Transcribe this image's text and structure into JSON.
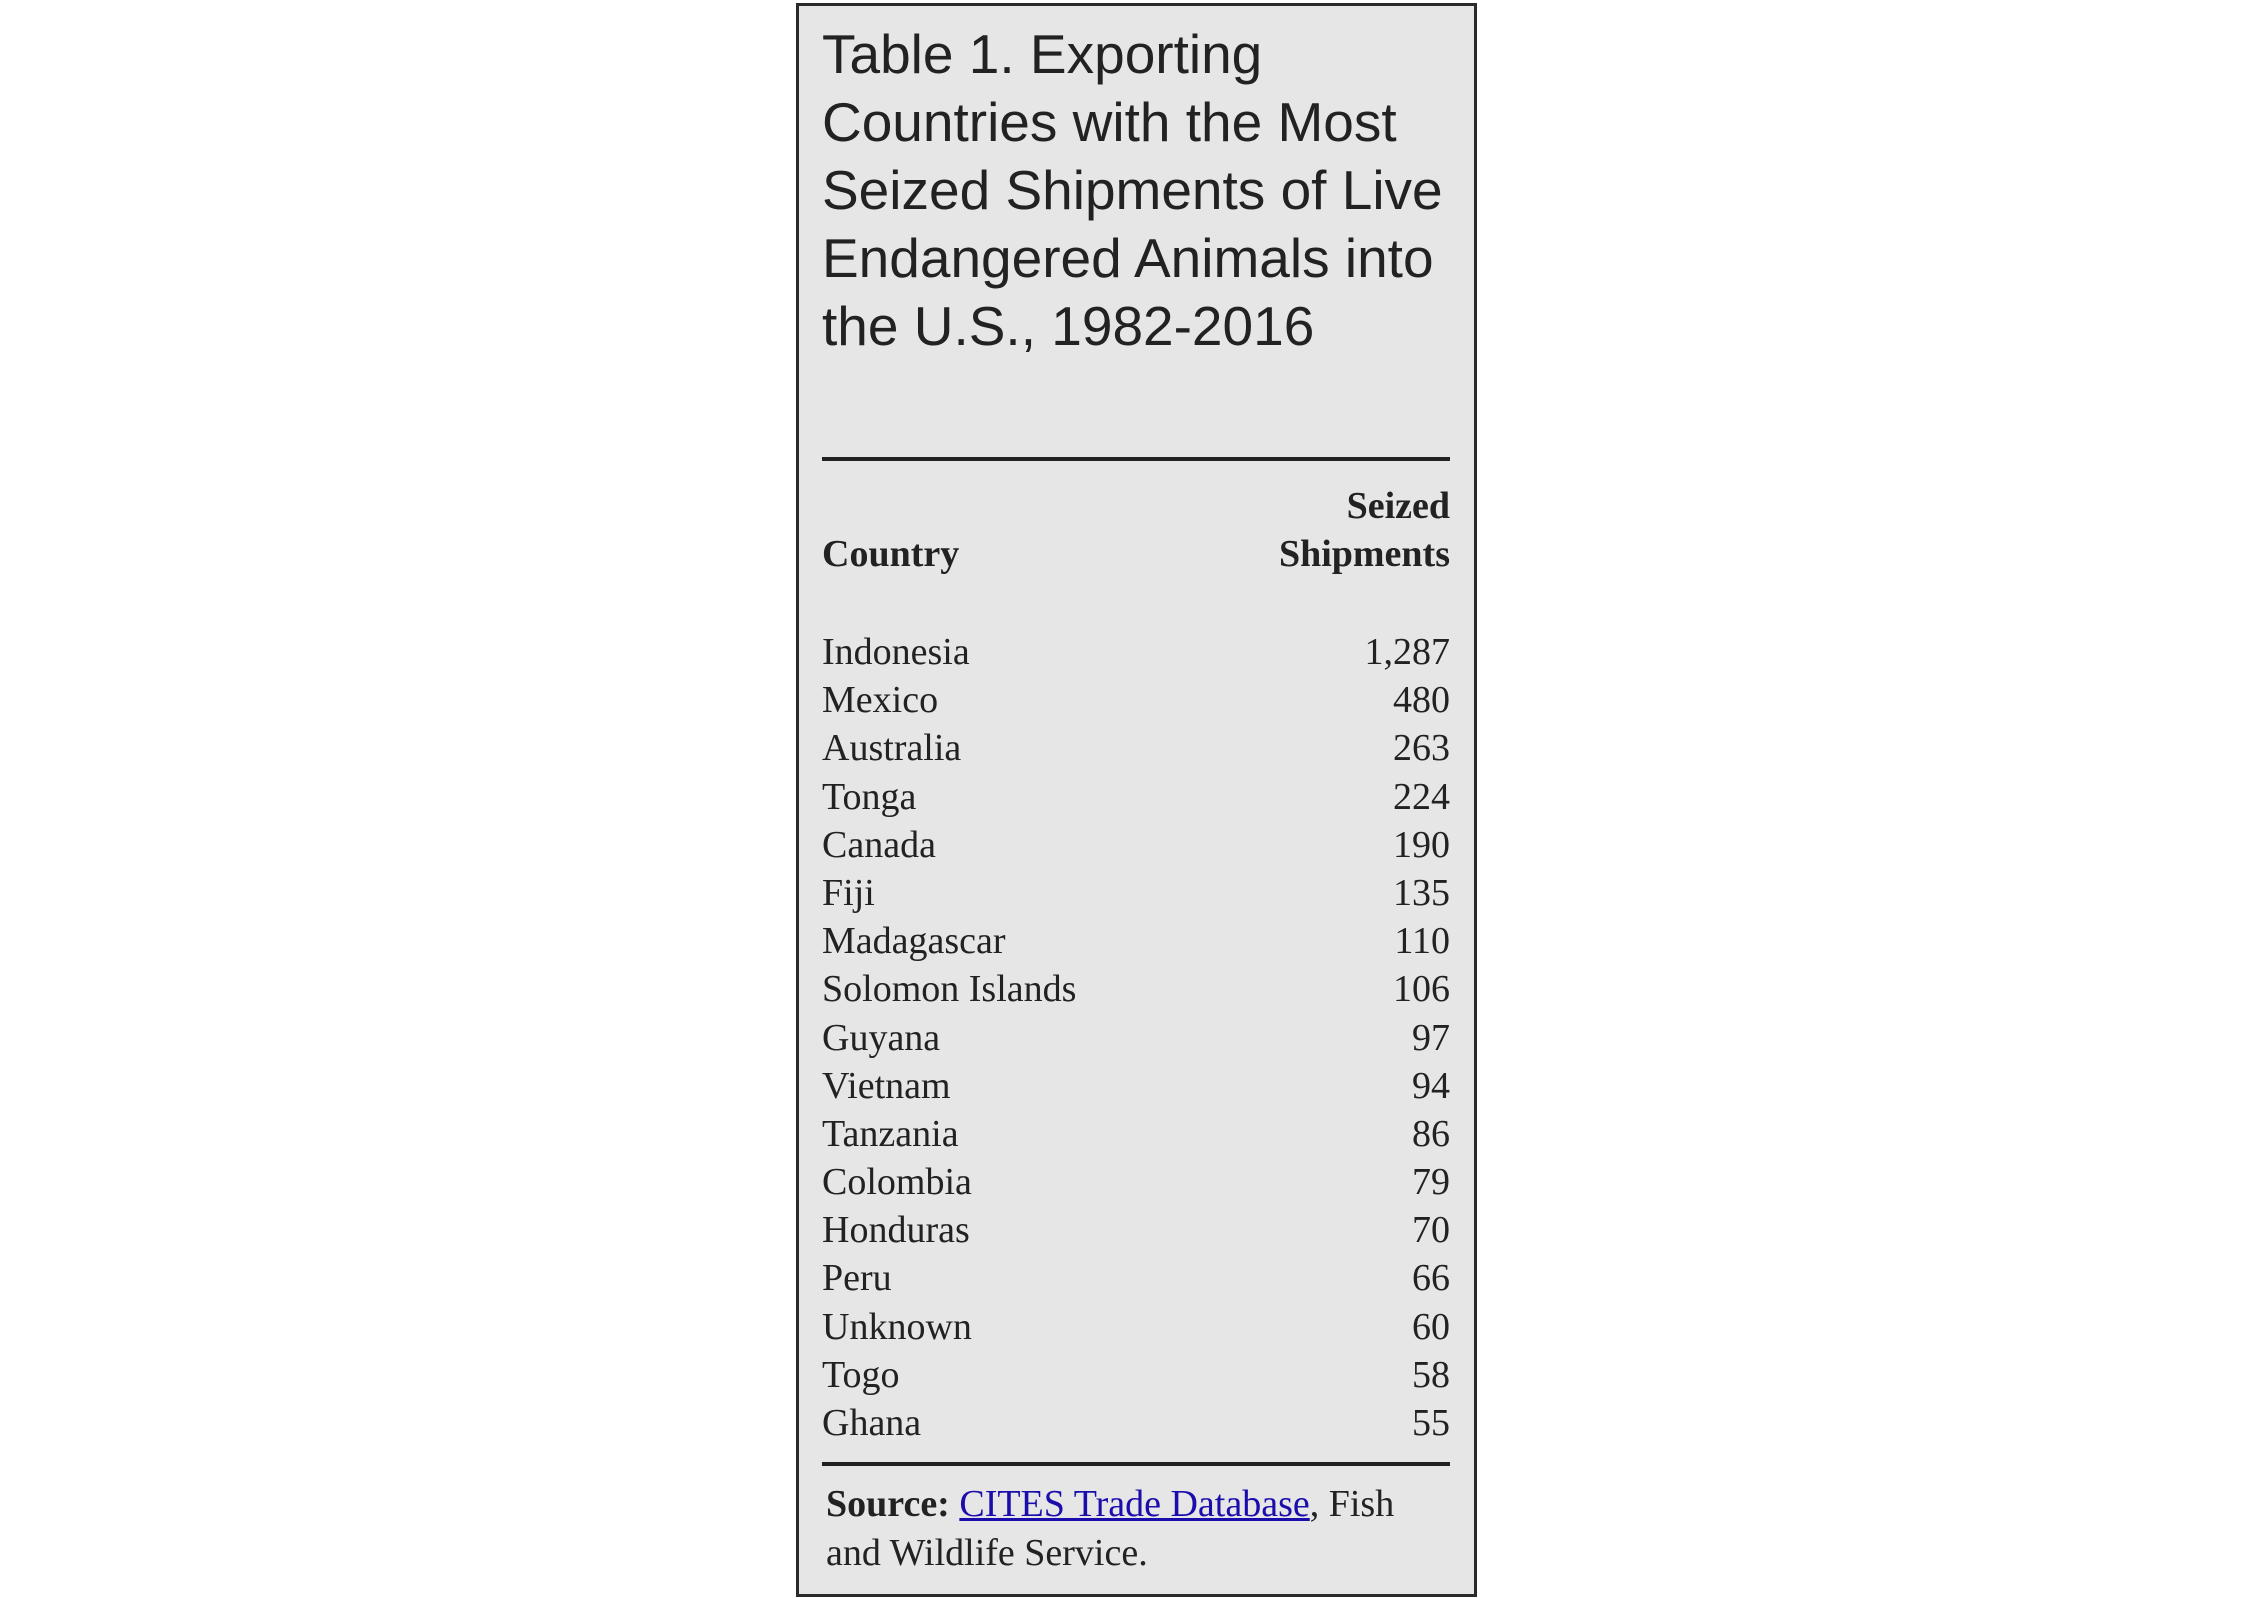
{
  "header": {
    "title": "Table 1. Exporting Countries with the Most Seized Shipments of Live Endangered Animals into the U.S., 1982-2016"
  },
  "table": {
    "columns": [
      "Country",
      "Seized Shipments"
    ],
    "rows": [
      [
        "Indonesia",
        "1,287"
      ],
      [
        "Mexico",
        "480"
      ],
      [
        "Australia",
        "263"
      ],
      [
        "Tonga",
        "224"
      ],
      [
        "Canada",
        "190"
      ],
      [
        "Fiji",
        "135"
      ],
      [
        "Madagascar",
        "110"
      ],
      [
        "Solomon Islands",
        "106"
      ],
      [
        "Guyana",
        "97"
      ],
      [
        "Vietnam",
        "94"
      ],
      [
        "Tanzania",
        "86"
      ],
      [
        "Colombia",
        "79"
      ],
      [
        "Honduras",
        "70"
      ],
      [
        "Peru",
        "66"
      ],
      [
        "Unknown",
        "60"
      ],
      [
        "Togo",
        "58"
      ],
      [
        "Ghana",
        "55"
      ]
    ]
  },
  "source": {
    "label": "Source:",
    "link": "CITES Trade Database",
    "rest": ", Fish and Wildlife Service."
  }
}
